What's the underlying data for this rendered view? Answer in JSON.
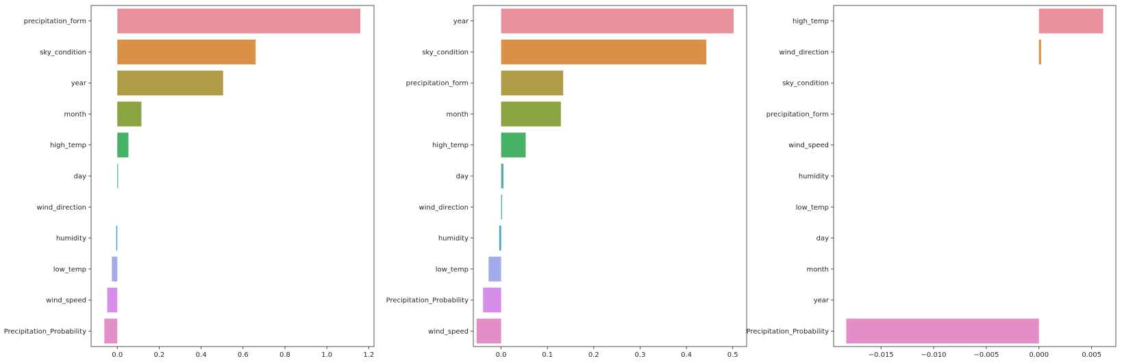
{
  "chart_data": [
    {
      "type": "bar",
      "orientation": "horizontal",
      "categories": [
        "precipitation_form",
        "sky_condition",
        "year",
        "month",
        "high_temp",
        "day",
        "wind_direction",
        "humidity",
        "low_temp",
        "wind_speed",
        "Precipitation_Probability"
      ],
      "values": [
        1.16,
        0.66,
        0.505,
        0.115,
        0.053,
        0.004,
        0.0,
        -0.005,
        -0.026,
        -0.048,
        -0.062
      ],
      "colors": [
        "#e8909c",
        "#db9048",
        "#b09c46",
        "#8ba441",
        "#47b166",
        "#4db59f",
        "#42b0b8",
        "#44a3d4",
        "#a3abe8",
        "#d68ee8",
        "#e48ec8"
      ],
      "xlim": [
        -0.125,
        1.225
      ],
      "xticks": [
        0.0,
        0.2,
        0.4,
        0.6,
        0.8,
        1.0,
        1.2
      ],
      "xtick_labels": [
        "0.0",
        "0.2",
        "0.4",
        "0.6",
        "0.8",
        "1.0",
        "1.2"
      ],
      "title": "",
      "xlabel": "",
      "ylabel": "",
      "grid": false
    },
    {
      "type": "bar",
      "orientation": "horizontal",
      "categories": [
        "year",
        "sky_condition",
        "precipitation_form",
        "month",
        "high_temp",
        "day",
        "wind_direction",
        "humidity",
        "low_temp",
        "Precipitation_Probability",
        "wind_speed"
      ],
      "values": [
        0.502,
        0.443,
        0.134,
        0.129,
        0.053,
        0.005,
        0.002,
        -0.004,
        -0.027,
        -0.039,
        -0.053
      ],
      "colors": [
        "#e8909c",
        "#db9048",
        "#b09c46",
        "#8ba441",
        "#47b166",
        "#4db59f",
        "#42b0b8",
        "#44a3d4",
        "#a3abe8",
        "#d68ee8",
        "#e48ec8"
      ],
      "xlim": [
        -0.06,
        0.53
      ],
      "xticks": [
        0.0,
        0.1,
        0.2,
        0.3,
        0.4,
        0.5
      ],
      "xtick_labels": [
        "0.0",
        "0.1",
        "0.2",
        "0.3",
        "0.4",
        "0.5"
      ],
      "title": "",
      "xlabel": "",
      "ylabel": "",
      "grid": false
    },
    {
      "type": "bar",
      "orientation": "horizontal",
      "categories": [
        "high_temp",
        "wind_direction",
        "sky_condition",
        "precipitation_form",
        "wind_speed",
        "humidity",
        "low_temp",
        "day",
        "month",
        "year",
        "Precipitation_Probability"
      ],
      "values": [
        0.0061,
        0.0002,
        0.0,
        0.0,
        0.0,
        0.0,
        0.0,
        0.0,
        0.0,
        0.0,
        -0.0183
      ],
      "colors": [
        "#e8909c",
        "#db9048",
        "#b09c46",
        "#8ba441",
        "#47b166",
        "#4db59f",
        "#42b0b8",
        "#44a3d4",
        "#a3abe8",
        "#d68ee8",
        "#e48ec8"
      ],
      "xlim": [
        -0.0195,
        0.0073
      ],
      "xticks": [
        -0.015,
        -0.01,
        -0.005,
        0.0,
        0.005
      ],
      "xtick_labels": [
        "−0.015",
        "−0.010",
        "−0.005",
        "0.000",
        "0.005"
      ],
      "title": "",
      "xlabel": "",
      "ylabel": "",
      "grid": false
    }
  ]
}
